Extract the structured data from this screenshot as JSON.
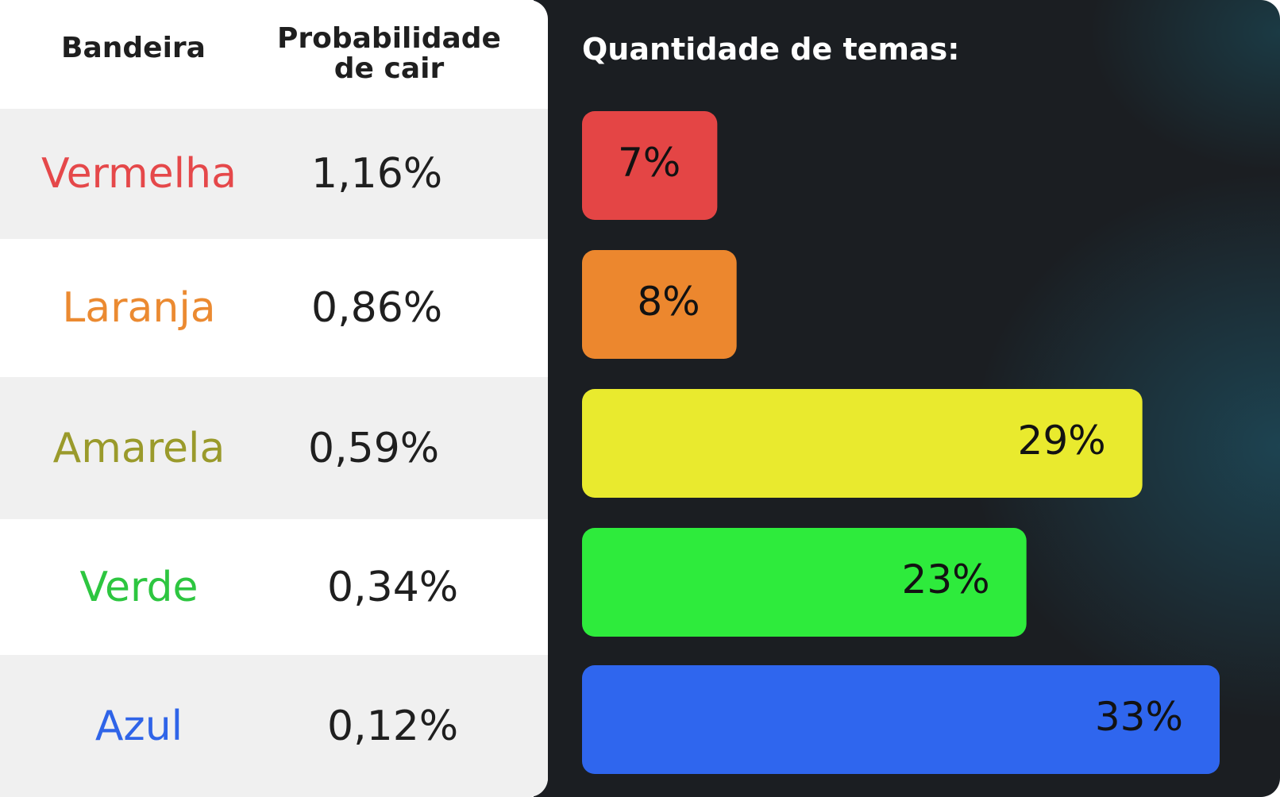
{
  "table": {
    "header_flag": "Bandeira",
    "header_prob_line1": "Probabilidade",
    "header_prob_line2": "de cair",
    "rows": [
      {
        "name": "Vermelha",
        "prob": "1,16%",
        "color": "#e5484a"
      },
      {
        "name": "Laranja",
        "prob": "0,86%",
        "color": "#eb8a31"
      },
      {
        "name": "Amarela",
        "prob": "0,59%",
        "color": "#9a9a2b"
      },
      {
        "name": "Verde",
        "prob": "0,34%",
        "color": "#2dc640"
      },
      {
        "name": "Azul",
        "prob": "0,12%",
        "color": "#2f64e8"
      }
    ]
  },
  "chart_data": {
    "type": "bar",
    "orientation": "horizontal",
    "title": "Quantidade de temas:",
    "categories": [
      "Vermelha",
      "Laranja",
      "Amarela",
      "Verde",
      "Azul"
    ],
    "values": [
      7,
      8,
      29,
      23,
      33
    ],
    "value_labels": [
      "7%",
      "8%",
      "29%",
      "23%",
      "33%"
    ],
    "colors": [
      "#e44545",
      "#ec872e",
      "#e9ea2e",
      "#2eeb3c",
      "#2f66ee"
    ],
    "xlim": [
      0,
      33
    ],
    "grid": false,
    "legend": "none"
  }
}
